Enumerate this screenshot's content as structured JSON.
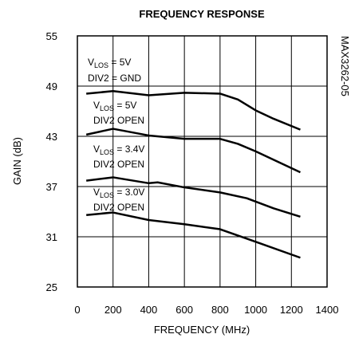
{
  "chart_data": {
    "type": "line",
    "title": "FREQUENCY RESPONSE",
    "xlabel": "FREQUENCY (MHz)",
    "ylabel": "GAIN (dB)",
    "side_note": "MAX3262-05",
    "xlim": [
      0,
      1400
    ],
    "xticks": [
      0,
      200,
      400,
      600,
      800,
      1000,
      1200,
      1400
    ],
    "ylim": [
      25,
      55
    ],
    "yticks": [
      25,
      31,
      37,
      43,
      49,
      55
    ],
    "grid": true,
    "series": [
      {
        "color": "#000000",
        "x": [
          50,
          200,
          400,
          600,
          800,
          900,
          1000,
          1100,
          1250
        ],
        "values": [
          48.1,
          48.4,
          47.9,
          48.2,
          48.1,
          47.4,
          46.1,
          45.1,
          43.8
        ]
      },
      {
        "color": "#000000",
        "x": [
          50,
          200,
          400,
          600,
          800,
          900,
          1000,
          1250
        ],
        "values": [
          43.2,
          43.9,
          43.1,
          42.7,
          42.7,
          42.1,
          41.2,
          38.7
        ]
      },
      {
        "color": "#000000",
        "x": [
          50,
          200,
          400,
          450,
          600,
          800,
          950,
          1100,
          1250
        ],
        "values": [
          37.7,
          38.1,
          37.4,
          37.5,
          36.9,
          36.3,
          35.6,
          34.4,
          33.4
        ]
      },
      {
        "color": "#000000",
        "x": [
          50,
          200,
          400,
          600,
          800,
          1000,
          1250
        ],
        "values": [
          33.6,
          33.9,
          33.0,
          32.5,
          31.9,
          30.4,
          28.5
        ]
      }
    ],
    "annotations": [
      {
        "v": "V",
        "sub": "LOS",
        "eq": " = 5V",
        "note": "DIV2 = GND"
      },
      {
        "v": "V",
        "sub": "LOS",
        "eq": " = 5V",
        "note": "DIV2 OPEN"
      },
      {
        "v": "V",
        "sub": "LOS",
        "eq": " = 3.4V",
        "note": "DIV2 OPEN"
      },
      {
        "v": "V",
        "sub": "LOS",
        "eq": " = 3.0V",
        "note": "DIV2 OPEN"
      }
    ]
  }
}
